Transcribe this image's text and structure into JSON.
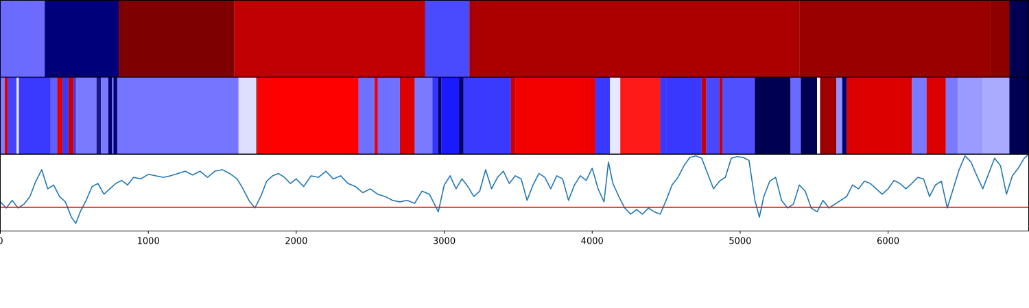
{
  "chart_data": [
    {
      "type": "heatmap",
      "x_range": [
        0,
        6950
      ],
      "segments": [
        {
          "start": 0,
          "end": 300,
          "color": "#6b6bff"
        },
        {
          "start": 300,
          "end": 800,
          "color": "#00007a"
        },
        {
          "start": 800,
          "end": 1580,
          "color": "#7f0000"
        },
        {
          "start": 1580,
          "end": 2870,
          "color": "#c00000"
        },
        {
          "start": 2870,
          "end": 3170,
          "color": "#4a4aff"
        },
        {
          "start": 3170,
          "end": 5400,
          "color": "#ab0000"
        },
        {
          "start": 5400,
          "end": 6690,
          "color": "#990000"
        },
        {
          "start": 6690,
          "end": 6820,
          "color": "#8c0000"
        },
        {
          "start": 6820,
          "end": 6950,
          "color": "#000052"
        }
      ]
    },
    {
      "type": "heatmap",
      "x_range": [
        0,
        6950
      ],
      "segments": [
        {
          "start": 0,
          "end": 30,
          "color": "#8080ff"
        },
        {
          "start": 30,
          "end": 50,
          "color": "#dd0000"
        },
        {
          "start": 50,
          "end": 110,
          "color": "#4444ff"
        },
        {
          "start": 110,
          "end": 125,
          "color": "#e8e8ff"
        },
        {
          "start": 125,
          "end": 340,
          "color": "#3a3aff"
        },
        {
          "start": 340,
          "end": 385,
          "color": "#6060ff"
        },
        {
          "start": 385,
          "end": 420,
          "color": "#e00000"
        },
        {
          "start": 420,
          "end": 460,
          "color": "#3a3aff"
        },
        {
          "start": 460,
          "end": 495,
          "color": "#cc0000"
        },
        {
          "start": 495,
          "end": 510,
          "color": "#3a3aff"
        },
        {
          "start": 510,
          "end": 650,
          "color": "#7a7aff"
        },
        {
          "start": 650,
          "end": 680,
          "color": "#1a1a8a"
        },
        {
          "start": 680,
          "end": 730,
          "color": "#7a7aff"
        },
        {
          "start": 730,
          "end": 755,
          "color": "#00006e"
        },
        {
          "start": 755,
          "end": 765,
          "color": "#7a7aff"
        },
        {
          "start": 765,
          "end": 790,
          "color": "#00006e"
        },
        {
          "start": 790,
          "end": 1610,
          "color": "#7575ff"
        },
        {
          "start": 1610,
          "end": 1730,
          "color": "#dedeff"
        },
        {
          "start": 1730,
          "end": 1740,
          "color": "#c80000"
        },
        {
          "start": 1740,
          "end": 2420,
          "color": "#ff0000"
        },
        {
          "start": 2420,
          "end": 2530,
          "color": "#7070ff"
        },
        {
          "start": 2530,
          "end": 2550,
          "color": "#ee0000"
        },
        {
          "start": 2550,
          "end": 2700,
          "color": "#7070ff"
        },
        {
          "start": 2700,
          "end": 2800,
          "color": "#dd0000"
        },
        {
          "start": 2800,
          "end": 2920,
          "color": "#7a7aff"
        },
        {
          "start": 2920,
          "end": 2960,
          "color": "#3535ff"
        },
        {
          "start": 2960,
          "end": 2980,
          "color": "#000050"
        },
        {
          "start": 2980,
          "end": 3100,
          "color": "#1a1aff"
        },
        {
          "start": 3100,
          "end": 3130,
          "color": "#00006e"
        },
        {
          "start": 3130,
          "end": 3450,
          "color": "#3a3aff"
        },
        {
          "start": 3450,
          "end": 3480,
          "color": "#cc0000"
        },
        {
          "start": 3480,
          "end": 3950,
          "color": "#f20000"
        },
        {
          "start": 3950,
          "end": 4020,
          "color": "#ee0000"
        },
        {
          "start": 4020,
          "end": 4120,
          "color": "#3a3aff"
        },
        {
          "start": 4120,
          "end": 4190,
          "color": "#e6e6ff"
        },
        {
          "start": 4190,
          "end": 4460,
          "color": "#ff1a1a"
        },
        {
          "start": 4460,
          "end": 4500,
          "color": "#3a3aff"
        },
        {
          "start": 4500,
          "end": 4740,
          "color": "#3838ff"
        },
        {
          "start": 4740,
          "end": 4770,
          "color": "#c80000"
        },
        {
          "start": 4770,
          "end": 4860,
          "color": "#4848ff"
        },
        {
          "start": 4860,
          "end": 4880,
          "color": "#cc0000"
        },
        {
          "start": 4880,
          "end": 5100,
          "color": "#5050ff"
        },
        {
          "start": 5100,
          "end": 5340,
          "color": "#000050"
        },
        {
          "start": 5340,
          "end": 5410,
          "color": "#6a6aff"
        },
        {
          "start": 5410,
          "end": 5520,
          "color": "#000050"
        },
        {
          "start": 5520,
          "end": 5540,
          "color": "#ffffff"
        },
        {
          "start": 5540,
          "end": 5650,
          "color": "#a00000"
        },
        {
          "start": 5650,
          "end": 5690,
          "color": "#9090ff"
        },
        {
          "start": 5690,
          "end": 5720,
          "color": "#00006e"
        },
        {
          "start": 5720,
          "end": 6160,
          "color": "#dd0000"
        },
        {
          "start": 6160,
          "end": 6260,
          "color": "#7a7aff"
        },
        {
          "start": 6260,
          "end": 6390,
          "color": "#dd0000"
        },
        {
          "start": 6390,
          "end": 6470,
          "color": "#7a7aff"
        },
        {
          "start": 6470,
          "end": 6640,
          "color": "#9a9aff"
        },
        {
          "start": 6640,
          "end": 6820,
          "color": "#aaaaff"
        },
        {
          "start": 6820,
          "end": 6950,
          "color": "#000052"
        }
      ]
    },
    {
      "type": "line",
      "xlim": [
        0,
        6950
      ],
      "ylim": [
        0,
        1
      ],
      "x_ticks": [
        0,
        1000,
        2000,
        3000,
        4000,
        5000,
        6000
      ],
      "x_tick_labels": [
        "0",
        "1000",
        "2000",
        "3000",
        "4000",
        "5000",
        "6000"
      ],
      "grid": false,
      "threshold": {
        "value": 0.31,
        "color": "#ff0000"
      },
      "series": [
        {
          "color": "#1f77b4",
          "points": [
            [
              0,
              0.38
            ],
            [
              40,
              0.3
            ],
            [
              80,
              0.4
            ],
            [
              120,
              0.3
            ],
            [
              160,
              0.35
            ],
            [
              200,
              0.45
            ],
            [
              240,
              0.65
            ],
            [
              280,
              0.8
            ],
            [
              320,
              0.55
            ],
            [
              360,
              0.6
            ],
            [
              400,
              0.45
            ],
            [
              440,
              0.38
            ],
            [
              480,
              0.18
            ],
            [
              510,
              0.1
            ],
            [
              540,
              0.25
            ],
            [
              580,
              0.4
            ],
            [
              620,
              0.58
            ],
            [
              660,
              0.62
            ],
            [
              700,
              0.48
            ],
            [
              740,
              0.55
            ],
            [
              780,
              0.62
            ],
            [
              820,
              0.66
            ],
            [
              860,
              0.6
            ],
            [
              900,
              0.7
            ],
            [
              950,
              0.68
            ],
            [
              1000,
              0.74
            ],
            [
              1050,
              0.72
            ],
            [
              1100,
              0.7
            ],
            [
              1150,
              0.72
            ],
            [
              1200,
              0.75
            ],
            [
              1250,
              0.78
            ],
            [
              1300,
              0.73
            ],
            [
              1350,
              0.78
            ],
            [
              1400,
              0.7
            ],
            [
              1450,
              0.78
            ],
            [
              1500,
              0.8
            ],
            [
              1550,
              0.75
            ],
            [
              1600,
              0.68
            ],
            [
              1640,
              0.55
            ],
            [
              1680,
              0.4
            ],
            [
              1720,
              0.3
            ],
            [
              1760,
              0.45
            ],
            [
              1800,
              0.65
            ],
            [
              1840,
              0.72
            ],
            [
              1880,
              0.75
            ],
            [
              1920,
              0.7
            ],
            [
              1960,
              0.62
            ],
            [
              2000,
              0.68
            ],
            [
              2050,
              0.58
            ],
            [
              2100,
              0.72
            ],
            [
              2150,
              0.7
            ],
            [
              2200,
              0.78
            ],
            [
              2250,
              0.68
            ],
            [
              2300,
              0.72
            ],
            [
              2350,
              0.62
            ],
            [
              2400,
              0.58
            ],
            [
              2450,
              0.5
            ],
            [
              2500,
              0.55
            ],
            [
              2550,
              0.48
            ],
            [
              2600,
              0.45
            ],
            [
              2650,
              0.4
            ],
            [
              2700,
              0.38
            ],
            [
              2750,
              0.4
            ],
            [
              2800,
              0.36
            ],
            [
              2850,
              0.52
            ],
            [
              2900,
              0.48
            ],
            [
              2960,
              0.25
            ],
            [
              3000,
              0.6
            ],
            [
              3040,
              0.72
            ],
            [
              3080,
              0.55
            ],
            [
              3120,
              0.68
            ],
            [
              3160,
              0.58
            ],
            [
              3200,
              0.45
            ],
            [
              3240,
              0.52
            ],
            [
              3280,
              0.8
            ],
            [
              3320,
              0.55
            ],
            [
              3360,
              0.7
            ],
            [
              3400,
              0.78
            ],
            [
              3440,
              0.62
            ],
            [
              3480,
              0.72
            ],
            [
              3520,
              0.68
            ],
            [
              3560,
              0.4
            ],
            [
              3600,
              0.6
            ],
            [
              3640,
              0.75
            ],
            [
              3680,
              0.7
            ],
            [
              3720,
              0.55
            ],
            [
              3760,
              0.72
            ],
            [
              3800,
              0.68
            ],
            [
              3840,
              0.4
            ],
            [
              3880,
              0.6
            ],
            [
              3920,
              0.72
            ],
            [
              3960,
              0.66
            ],
            [
              4000,
              0.82
            ],
            [
              4040,
              0.55
            ],
            [
              4080,
              0.38
            ],
            [
              4110,
              0.9
            ],
            [
              4140,
              0.62
            ],
            [
              4180,
              0.45
            ],
            [
              4220,
              0.3
            ],
            [
              4260,
              0.22
            ],
            [
              4300,
              0.28
            ],
            [
              4340,
              0.22
            ],
            [
              4380,
              0.3
            ],
            [
              4420,
              0.25
            ],
            [
              4460,
              0.22
            ],
            [
              4500,
              0.4
            ],
            [
              4540,
              0.6
            ],
            [
              4580,
              0.7
            ],
            [
              4620,
              0.85
            ],
            [
              4660,
              0.96
            ],
            [
              4700,
              0.98
            ],
            [
              4740,
              0.95
            ],
            [
              4780,
              0.75
            ],
            [
              4820,
              0.55
            ],
            [
              4860,
              0.65
            ],
            [
              4900,
              0.7
            ],
            [
              4940,
              0.95
            ],
            [
              4980,
              0.97
            ],
            [
              5020,
              0.96
            ],
            [
              5060,
              0.92
            ],
            [
              5100,
              0.4
            ],
            [
              5130,
              0.18
            ],
            [
              5160,
              0.45
            ],
            [
              5200,
              0.65
            ],
            [
              5240,
              0.7
            ],
            [
              5280,
              0.4
            ],
            [
              5320,
              0.3
            ],
            [
              5360,
              0.35
            ],
            [
              5400,
              0.6
            ],
            [
              5440,
              0.52
            ],
            [
              5480,
              0.3
            ],
            [
              5520,
              0.25
            ],
            [
              5560,
              0.4
            ],
            [
              5600,
              0.3
            ],
            [
              5640,
              0.35
            ],
            [
              5680,
              0.4
            ],
            [
              5720,
              0.45
            ],
            [
              5760,
              0.6
            ],
            [
              5800,
              0.55
            ],
            [
              5840,
              0.65
            ],
            [
              5880,
              0.62
            ],
            [
              5920,
              0.55
            ],
            [
              5960,
              0.48
            ],
            [
              6000,
              0.55
            ],
            [
              6040,
              0.66
            ],
            [
              6080,
              0.62
            ],
            [
              6120,
              0.55
            ],
            [
              6160,
              0.62
            ],
            [
              6200,
              0.7
            ],
            [
              6240,
              0.68
            ],
            [
              6280,
              0.45
            ],
            [
              6320,
              0.6
            ],
            [
              6360,
              0.65
            ],
            [
              6400,
              0.3
            ],
            [
              6440,
              0.55
            ],
            [
              6480,
              0.8
            ],
            [
              6520,
              0.98
            ],
            [
              6560,
              0.9
            ],
            [
              6600,
              0.72
            ],
            [
              6640,
              0.55
            ],
            [
              6680,
              0.75
            ],
            [
              6720,
              0.95
            ],
            [
              6760,
              0.85
            ],
            [
              6800,
              0.48
            ],
            [
              6840,
              0.72
            ],
            [
              6880,
              0.82
            ],
            [
              6920,
              0.95
            ],
            [
              6950,
              1.0
            ]
          ]
        }
      ]
    }
  ]
}
